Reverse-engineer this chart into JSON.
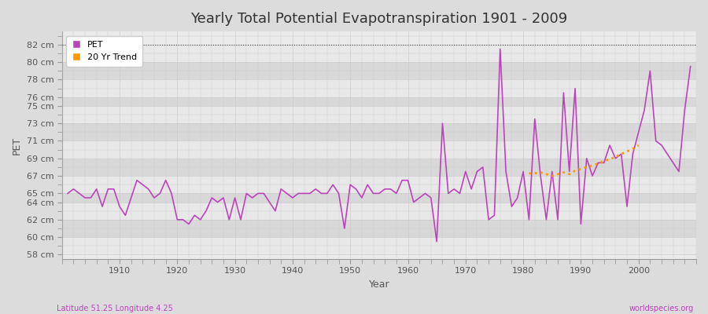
{
  "title": "Yearly Total Potential Evapotranspiration 1901 - 2009",
  "xlabel": "Year",
  "ylabel": "PET",
  "subtitle_left": "Latitude 51.25 Longitude 4.25",
  "subtitle_right": "worldspecies.org",
  "pet_color": "#bb44bb",
  "trend_color": "#ff9900",
  "bg_color": "#dcdcdc",
  "plot_bg_color": "#ebebeb",
  "band_color_light": "#e8e8e8",
  "band_color_dark": "#d8d8d8",
  "ylim": [
    57.5,
    83.5
  ],
  "yticks": [
    58,
    60,
    62,
    64,
    65,
    67,
    69,
    71,
    73,
    75,
    76,
    78,
    80,
    82
  ],
  "ytick_labels": [
    "58 cm",
    "60 cm",
    "62 cm",
    "64 cm",
    "65 cm",
    "67 cm",
    "69 cm",
    "71 cm",
    "73 cm",
    "75 cm",
    "76 cm",
    "78 cm",
    "80 cm",
    "82 cm"
  ],
  "xlim": [
    1900,
    2010
  ],
  "xticks": [
    1910,
    1920,
    1930,
    1940,
    1950,
    1960,
    1970,
    1980,
    1990,
    2000
  ],
  "years": [
    1901,
    1902,
    1903,
    1904,
    1905,
    1906,
    1907,
    1908,
    1909,
    1910,
    1911,
    1912,
    1913,
    1914,
    1915,
    1916,
    1917,
    1918,
    1919,
    1920,
    1921,
    1922,
    1923,
    1924,
    1925,
    1926,
    1927,
    1928,
    1929,
    1930,
    1931,
    1932,
    1933,
    1934,
    1935,
    1936,
    1937,
    1938,
    1939,
    1940,
    1941,
    1942,
    1943,
    1944,
    1945,
    1946,
    1947,
    1948,
    1949,
    1950,
    1951,
    1952,
    1953,
    1954,
    1955,
    1956,
    1957,
    1958,
    1959,
    1960,
    1961,
    1962,
    1963,
    1964,
    1965,
    1966,
    1967,
    1968,
    1969,
    1970,
    1971,
    1972,
    1973,
    1974,
    1975,
    1976,
    1977,
    1978,
    1979,
    1980,
    1981,
    1982,
    1983,
    1984,
    1985,
    1986,
    1987,
    1988,
    1989,
    1990,
    1991,
    1992,
    1993,
    1994,
    1995,
    1996,
    1997,
    1998,
    1999,
    2000,
    2001,
    2002,
    2003,
    2004,
    2005,
    2006,
    2007,
    2008,
    2009
  ],
  "pet": [
    65.0,
    65.5,
    65.0,
    64.5,
    64.5,
    65.5,
    63.5,
    65.5,
    65.5,
    63.5,
    62.5,
    64.5,
    66.5,
    66.0,
    65.5,
    64.5,
    65.0,
    66.5,
    65.0,
    62.0,
    62.0,
    61.5,
    62.5,
    62.0,
    63.0,
    64.5,
    64.0,
    64.5,
    62.0,
    64.5,
    62.0,
    65.0,
    64.5,
    65.0,
    65.0,
    64.0,
    63.0,
    65.5,
    65.0,
    64.5,
    65.0,
    65.0,
    65.0,
    65.5,
    65.0,
    65.0,
    66.0,
    65.0,
    61.0,
    66.0,
    65.5,
    64.5,
    66.0,
    65.0,
    65.0,
    65.5,
    65.5,
    65.0,
    66.5,
    66.5,
    64.0,
    64.5,
    65.0,
    64.5,
    59.5,
    73.0,
    65.0,
    65.5,
    65.0,
    67.5,
    65.5,
    67.5,
    68.0,
    62.0,
    62.5,
    81.5,
    67.5,
    63.5,
    64.5,
    67.5,
    62.0,
    73.5,
    67.0,
    62.0,
    67.5,
    62.0,
    76.5,
    67.5,
    77.0,
    61.5,
    69.0,
    67.0,
    68.5,
    68.5,
    70.5,
    69.0,
    69.5,
    63.5,
    69.5,
    72.0,
    74.5,
    79.0,
    71.0,
    70.5,
    69.5,
    68.5,
    67.5,
    74.5,
    79.5
  ],
  "trend_years": [
    1981,
    1982,
    1983,
    1984,
    1985,
    1986,
    1987,
    1988,
    1989,
    1990,
    1991,
    1992,
    1993,
    1994,
    1995,
    1996,
    1997,
    1998,
    1999,
    2000
  ],
  "trend_vals": [
    67.3,
    67.3,
    67.4,
    67.2,
    67.0,
    67.2,
    67.4,
    67.2,
    67.6,
    67.8,
    68.0,
    68.2,
    68.4,
    68.7,
    68.9,
    69.2,
    69.5,
    69.8,
    70.1,
    70.5
  ]
}
